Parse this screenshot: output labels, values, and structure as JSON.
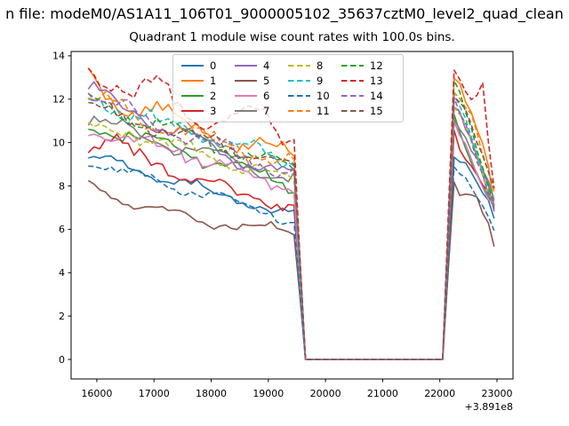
{
  "header": {
    "suptitle_visible": "n file: modeM0/AS1A11_106T01_9000005102_35637cztM0_level2_quad_clean",
    "title": "Quadrant 1 module wise count rates with 100.0s bins."
  },
  "chart_data": {
    "type": "line",
    "title": "Quadrant 1 module wise count rates with 100.0s bins.",
    "suptitle": "n file: modeM0/AS1A11_106T01_9000005102_35637cztM0_level2_quad_clean",
    "xlabel": "",
    "ylabel": "",
    "x_offset_label": "+3.891e8",
    "bin_seconds": 100.0,
    "grid": false,
    "legend_position": "upper-center 4 columns, column-major order 0-15",
    "xlim": [
      15550,
      23280
    ],
    "ylim": [
      -0.9,
      14.2
    ],
    "x_ticks": [
      16000,
      17000,
      18000,
      19000,
      20000,
      21000,
      22000,
      23000
    ],
    "y_ticks": [
      0,
      2,
      4,
      6,
      8,
      10,
      12,
      14
    ],
    "x_start": 15850,
    "x_step": 100,
    "n_points": 72,
    "gap_zero_interval": [
      19650,
      22050
    ],
    "series": [
      {
        "label": "0",
        "color": "#1f77b4",
        "linestyle": "solid",
        "noise_amp": 0.22,
        "keyframes": [
          [
            15850,
            9.3
          ],
          [
            16600,
            8.8
          ],
          [
            17400,
            8.2
          ],
          [
            18200,
            7.6
          ],
          [
            18900,
            7.0
          ],
          [
            19450,
            6.7
          ],
          [
            19650,
            0
          ],
          [
            22050,
            0
          ],
          [
            22250,
            9.4
          ],
          [
            22500,
            8.7
          ],
          [
            22850,
            7.2
          ],
          [
            22950,
            6.3
          ]
        ]
      },
      {
        "label": "1",
        "color": "#ff7f0e",
        "linestyle": "solid",
        "noise_amp": 0.38,
        "keyframes": [
          [
            15850,
            13.2
          ],
          [
            16150,
            11.9
          ],
          [
            16600,
            11.5
          ],
          [
            17050,
            11.9
          ],
          [
            17400,
            10.9
          ],
          [
            18200,
            10.1
          ],
          [
            18900,
            9.7
          ],
          [
            19450,
            9.4
          ],
          [
            19650,
            0
          ],
          [
            22050,
            0
          ],
          [
            22250,
            12.6
          ],
          [
            22500,
            11.6
          ],
          [
            22850,
            8.9
          ],
          [
            22950,
            7.6
          ]
        ]
      },
      {
        "label": "2",
        "color": "#2ca02c",
        "linestyle": "solid",
        "noise_amp": 0.3,
        "keyframes": [
          [
            15850,
            10.9
          ],
          [
            16600,
            10.3
          ],
          [
            17400,
            9.7
          ],
          [
            18200,
            9.1
          ],
          [
            18900,
            8.4
          ],
          [
            19450,
            8.1
          ],
          [
            19650,
            0
          ],
          [
            22050,
            0
          ],
          [
            22250,
            11.2
          ],
          [
            22500,
            9.7
          ],
          [
            22850,
            7.8
          ],
          [
            22950,
            7.0
          ]
        ]
      },
      {
        "label": "3",
        "color": "#d62728",
        "linestyle": "solid",
        "noise_amp": 0.32,
        "keyframes": [
          [
            15850,
            9.8
          ],
          [
            16300,
            10.2
          ],
          [
            16600,
            9.4
          ],
          [
            17400,
            8.7
          ],
          [
            18200,
            7.9
          ],
          [
            18900,
            7.4
          ],
          [
            19450,
            7.2
          ],
          [
            19650,
            0
          ],
          [
            22050,
            0
          ],
          [
            22250,
            10.6
          ],
          [
            22500,
            9.3
          ],
          [
            22850,
            7.4
          ],
          [
            22950,
            6.8
          ]
        ]
      },
      {
        "label": "4",
        "color": "#9467bd",
        "linestyle": "solid",
        "noise_amp": 0.34,
        "keyframes": [
          [
            15850,
            12.5
          ],
          [
            16600,
            11.4
          ],
          [
            17400,
            10.5
          ],
          [
            18200,
            9.5
          ],
          [
            18900,
            8.9
          ],
          [
            19450,
            8.5
          ],
          [
            19650,
            0
          ],
          [
            22050,
            0
          ],
          [
            22250,
            11.8
          ],
          [
            22500,
            10.3
          ],
          [
            22850,
            7.6
          ],
          [
            22950,
            6.9
          ]
        ]
      },
      {
        "label": "5",
        "color": "#8c564b",
        "linestyle": "solid",
        "noise_amp": 0.22,
        "keyframes": [
          [
            15850,
            8.0
          ],
          [
            16600,
            7.2
          ],
          [
            17400,
            6.6
          ],
          [
            18200,
            6.3
          ],
          [
            18900,
            6.1
          ],
          [
            19450,
            5.9
          ],
          [
            19650,
            0
          ],
          [
            22050,
            0
          ],
          [
            22250,
            7.9
          ],
          [
            22400,
            7.3
          ],
          [
            22600,
            7.7
          ],
          [
            22850,
            6.4
          ],
          [
            22950,
            5.4
          ]
        ]
      },
      {
        "label": "6",
        "color": "#e377c2",
        "linestyle": "solid",
        "noise_amp": 0.3,
        "keyframes": [
          [
            15850,
            10.5
          ],
          [
            16600,
            10.1
          ],
          [
            17400,
            9.7
          ],
          [
            18200,
            8.9
          ],
          [
            18900,
            8.3
          ],
          [
            19450,
            7.9
          ],
          [
            19650,
            0
          ],
          [
            22050,
            0
          ],
          [
            22250,
            11.0
          ],
          [
            22500,
            9.9
          ],
          [
            22850,
            7.7
          ],
          [
            22950,
            7.2
          ]
        ]
      },
      {
        "label": "7",
        "color": "#7f7f7f",
        "linestyle": "solid",
        "noise_amp": 0.3,
        "keyframes": [
          [
            15850,
            11.1
          ],
          [
            16600,
            10.4
          ],
          [
            17400,
            9.8
          ],
          [
            18200,
            9.3
          ],
          [
            18900,
            8.7
          ],
          [
            19450,
            8.3
          ],
          [
            19650,
            0
          ],
          [
            22050,
            0
          ],
          [
            22250,
            11.3
          ],
          [
            22500,
            10.1
          ],
          [
            22850,
            7.9
          ],
          [
            22950,
            7.3
          ]
        ]
      },
      {
        "label": "8",
        "color": "#bcbd22",
        "linestyle": "dashed",
        "noise_amp": 0.3,
        "keyframes": [
          [
            15850,
            10.7
          ],
          [
            16600,
            10.4
          ],
          [
            17400,
            9.8
          ],
          [
            18200,
            9.2
          ],
          [
            18900,
            8.7
          ],
          [
            19450,
            8.2
          ],
          [
            19650,
            0
          ],
          [
            22050,
            0
          ],
          [
            22250,
            11.5
          ],
          [
            22500,
            10.2
          ],
          [
            22850,
            7.6
          ],
          [
            22950,
            7.1
          ]
        ]
      },
      {
        "label": "9",
        "color": "#17becf",
        "linestyle": "dashed",
        "noise_amp": 0.34,
        "keyframes": [
          [
            15850,
            12.1
          ],
          [
            16600,
            11.3
          ],
          [
            17400,
            10.7
          ],
          [
            18200,
            10.1
          ],
          [
            18900,
            9.5
          ],
          [
            19450,
            9.0
          ],
          [
            19650,
            0
          ],
          [
            22050,
            0
          ],
          [
            22250,
            12.2
          ],
          [
            22500,
            10.9
          ],
          [
            22850,
            8.0
          ],
          [
            22950,
            7.4
          ]
        ]
      },
      {
        "label": "10",
        "color": "#1f77b4",
        "linestyle": "dashed",
        "noise_amp": 0.26,
        "keyframes": [
          [
            15850,
            9.1
          ],
          [
            16600,
            8.5
          ],
          [
            17400,
            8.0
          ],
          [
            18200,
            7.4
          ],
          [
            18900,
            6.9
          ],
          [
            19450,
            6.5
          ],
          [
            19650,
            0
          ],
          [
            22050,
            0
          ],
          [
            22250,
            9.2
          ],
          [
            22500,
            8.4
          ],
          [
            22850,
            6.6
          ],
          [
            22950,
            5.9
          ]
        ]
      },
      {
        "label": "11",
        "color": "#ff7f0e",
        "linestyle": "dashed",
        "noise_amp": 0.36,
        "keyframes": [
          [
            15850,
            12.0
          ],
          [
            16600,
            11.3
          ],
          [
            17400,
            10.6
          ],
          [
            18200,
            10.0
          ],
          [
            18900,
            9.4
          ],
          [
            19450,
            8.9
          ],
          [
            19650,
            0
          ],
          [
            22050,
            0
          ],
          [
            22250,
            12.4
          ],
          [
            22500,
            11.3
          ],
          [
            22850,
            8.3
          ],
          [
            22950,
            7.5
          ]
        ]
      },
      {
        "label": "12",
        "color": "#2ca02c",
        "linestyle": "dashed",
        "noise_amp": 0.32,
        "keyframes": [
          [
            15850,
            11.9
          ],
          [
            16600,
            11.2
          ],
          [
            17400,
            10.5
          ],
          [
            18200,
            9.8
          ],
          [
            18900,
            9.1
          ],
          [
            19450,
            8.7
          ],
          [
            19650,
            0
          ],
          [
            22050,
            0
          ],
          [
            22250,
            12.8
          ],
          [
            22500,
            11.0
          ],
          [
            22850,
            8.0
          ],
          [
            22950,
            7.3
          ]
        ]
      },
      {
        "label": "13",
        "color": "#d62728",
        "linestyle": "dashed",
        "noise_amp": 0.42,
        "keyframes": [
          [
            15850,
            13.3
          ],
          [
            16250,
            12.9
          ],
          [
            16600,
            12.2
          ],
          [
            17100,
            12.6
          ],
          [
            17500,
            11.4
          ],
          [
            18200,
            11.0
          ],
          [
            18900,
            11.3
          ],
          [
            19250,
            10.2
          ],
          [
            19450,
            10.4
          ],
          [
            19650,
            0
          ],
          [
            22050,
            0
          ],
          [
            22250,
            13.5
          ],
          [
            22500,
            12.4
          ],
          [
            22750,
            12.8
          ],
          [
            22950,
            7.9
          ]
        ]
      },
      {
        "label": "14",
        "color": "#9467bd",
        "linestyle": "dashed",
        "noise_amp": 0.34,
        "keyframes": [
          [
            15850,
            12.3
          ],
          [
            16600,
            11.4
          ],
          [
            17400,
            10.6
          ],
          [
            18200,
            9.7
          ],
          [
            18900,
            9.0
          ],
          [
            19450,
            8.6
          ],
          [
            19650,
            0
          ],
          [
            22050,
            0
          ],
          [
            22250,
            12.3
          ],
          [
            22500,
            10.7
          ],
          [
            22850,
            7.6
          ],
          [
            22950,
            7.0
          ]
        ]
      },
      {
        "label": "15",
        "color": "#8c564b",
        "linestyle": "dashed",
        "noise_amp": 0.3,
        "keyframes": [
          [
            15850,
            11.7
          ],
          [
            16600,
            11.0
          ],
          [
            17400,
            10.4
          ],
          [
            18200,
            9.9
          ],
          [
            18900,
            9.3
          ],
          [
            19450,
            8.8
          ],
          [
            19650,
            0
          ],
          [
            22050,
            0
          ],
          [
            22250,
            12.0
          ],
          [
            22500,
            11.2
          ],
          [
            22850,
            8.2
          ],
          [
            22950,
            7.7
          ]
        ]
      }
    ]
  }
}
